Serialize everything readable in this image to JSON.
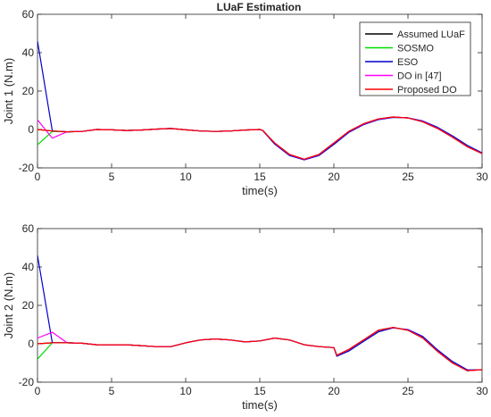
{
  "figure_title": "LUaF Estimation",
  "legend": [
    {
      "label": "Assumed LUaF",
      "color": "#000000"
    },
    {
      "label": "SOSMO",
      "color": "#00dd00"
    },
    {
      "label": "ESO",
      "color": "#0000cc"
    },
    {
      "label": "DO in [47]",
      "color": "#ff00ff"
    },
    {
      "label": "Proposed DO",
      "color": "#ff0000"
    }
  ],
  "chart_data": [
    {
      "type": "line",
      "title": "LUaF Estimation",
      "xlabel": "time(s)",
      "ylabel": "Joint 1 (N.m)",
      "xlim": [
        0,
        30
      ],
      "ylim": [
        -20,
        60
      ],
      "xticks": [
        0,
        5,
        10,
        15,
        20,
        25,
        30
      ],
      "yticks": [
        -20,
        0,
        20,
        40,
        60
      ],
      "grid": false,
      "legend_position": "top-right",
      "x": [
        0,
        1,
        2,
        3,
        4,
        5,
        6,
        7,
        8,
        9,
        10,
        11,
        12,
        13,
        14,
        15,
        15.2,
        16,
        17,
        18,
        19,
        20,
        21,
        22,
        23,
        24,
        25,
        26,
        27,
        28,
        29,
        30
      ],
      "series": [
        {
          "name": "Assumed LUaF",
          "color": "#000000",
          "values": [
            0,
            -0.8,
            -1.2,
            -1.0,
            0,
            -0.2,
            -0.5,
            -0.3,
            0.2,
            0.5,
            -0.2,
            -0.8,
            -1.0,
            -0.8,
            -0.3,
            0,
            -0.5,
            -7,
            -13,
            -15.5,
            -13,
            -7,
            -1,
            3,
            5.5,
            6.5,
            6,
            4,
            0.5,
            -4,
            -9,
            -12.5
          ]
        },
        {
          "name": "SOSMO",
          "color": "#00dd00",
          "values": [
            -8,
            -1,
            -1.2,
            -1.0,
            0,
            -0.2,
            -0.5,
            -0.3,
            0.2,
            0.5,
            -0.2,
            -0.8,
            -1.0,
            -0.8,
            -0.3,
            0,
            -0.5,
            -7.3,
            -13.3,
            -15.7,
            -13.3,
            -7.4,
            -1.3,
            2.8,
            5.3,
            6.4,
            6,
            4.2,
            0.8,
            -3.7,
            -8.7,
            -12.4
          ]
        },
        {
          "name": "ESO",
          "color": "#0000cc",
          "values": [
            46,
            -0.8,
            -1.2,
            -1.0,
            0,
            -0.2,
            -0.5,
            -0.3,
            0.2,
            0.5,
            -0.2,
            -0.8,
            -1.0,
            -0.8,
            -0.3,
            0,
            -0.6,
            -7.6,
            -13.6,
            -15.8,
            -13.6,
            -7.8,
            -1.6,
            2.5,
            5.1,
            6.3,
            6.1,
            4.4,
            1.1,
            -3.3,
            -8.3,
            -12.2
          ]
        },
        {
          "name": "DO in [47]",
          "color": "#ff00ff",
          "values": [
            5,
            -4.5,
            -1.2,
            -1.0,
            0,
            -0.2,
            -0.5,
            -0.3,
            0.2,
            0.5,
            -0.2,
            -0.8,
            -1.0,
            -0.8,
            -0.3,
            0,
            -0.5,
            -7.1,
            -13.1,
            -15.6,
            -13.1,
            -7.1,
            -1.1,
            2.9,
            5.4,
            6.5,
            6,
            4.1,
            0.6,
            -3.9,
            -8.9,
            -12.5
          ]
        },
        {
          "name": "Proposed DO",
          "color": "#ff0000",
          "values": [
            0,
            -0.8,
            -1.2,
            -1.0,
            0,
            -0.2,
            -0.5,
            -0.3,
            0.2,
            0.5,
            -0.2,
            -0.8,
            -1.0,
            -0.8,
            -0.3,
            0,
            -0.5,
            -7,
            -13,
            -15.5,
            -13,
            -7,
            -1,
            3,
            5.5,
            6.5,
            6,
            4,
            0.5,
            -4,
            -9,
            -12.5
          ]
        }
      ]
    },
    {
      "type": "line",
      "title": "",
      "xlabel": "time(s)",
      "ylabel": "Joint 2 (N.m)",
      "xlim": [
        0,
        30
      ],
      "ylim": [
        -20,
        60
      ],
      "xticks": [
        0,
        5,
        10,
        15,
        20,
        25,
        30
      ],
      "yticks": [
        -20,
        0,
        20,
        40,
        60
      ],
      "grid": false,
      "x": [
        0,
        1,
        2,
        3,
        4,
        5,
        6,
        7,
        8,
        9,
        10,
        11,
        12,
        13,
        14,
        15,
        16,
        17,
        18,
        19,
        20,
        20.2,
        21,
        22,
        23,
        24,
        25,
        26,
        27,
        28,
        29,
        30
      ],
      "series": [
        {
          "name": "Assumed LUaF",
          "color": "#000000",
          "values": [
            0,
            0.5,
            0.5,
            0.3,
            -0.5,
            -0.5,
            -0.5,
            -1.0,
            -1.5,
            -1.5,
            0.5,
            2,
            2.5,
            2,
            1,
            1.5,
            3,
            2,
            -0.5,
            -1.5,
            -2,
            -6,
            -3,
            2,
            7,
            8.5,
            7,
            3,
            -4,
            -10,
            -14,
            -13.5
          ]
        },
        {
          "name": "SOSMO",
          "color": "#00dd00",
          "values": [
            -8,
            0.5,
            0.5,
            0.3,
            -0.5,
            -0.5,
            -0.5,
            -1.0,
            -1.5,
            -1.5,
            0.5,
            2,
            2.5,
            2,
            1,
            1.5,
            3,
            2,
            -0.5,
            -1.5,
            -2,
            -6.2,
            -3.4,
            1.6,
            6.6,
            8.4,
            7.2,
            3.4,
            -3.6,
            -9.6,
            -13.8,
            -13.5
          ]
        },
        {
          "name": "ESO",
          "color": "#0000cc",
          "values": [
            46,
            0.5,
            0.5,
            0.3,
            -0.5,
            -0.5,
            -0.5,
            -1.0,
            -1.5,
            -1.5,
            0.5,
            2,
            2.5,
            2,
            1,
            1.5,
            3,
            2,
            -0.5,
            -1.5,
            -2,
            -6.5,
            -3.8,
            1.2,
            6.2,
            8.3,
            7.4,
            3.8,
            -3.2,
            -9.2,
            -13.6,
            -13.6
          ]
        },
        {
          "name": "DO in [47]",
          "color": "#ff00ff",
          "values": [
            3,
            6,
            0.5,
            0.3,
            -0.5,
            -0.5,
            -0.5,
            -1.0,
            -1.5,
            -1.5,
            0.5,
            2,
            2.5,
            2,
            1,
            1.5,
            3,
            2,
            -0.5,
            -1.5,
            -2,
            -6,
            -3.1,
            1.9,
            6.9,
            8.5,
            7.1,
            3.1,
            -3.9,
            -9.9,
            -14,
            -13.5
          ]
        },
        {
          "name": "Proposed DO",
          "color": "#ff0000",
          "values": [
            0,
            0.5,
            0.5,
            0.3,
            -0.5,
            -0.5,
            -0.5,
            -1.0,
            -1.5,
            -1.5,
            0.5,
            2,
            2.5,
            2,
            1,
            1.5,
            3,
            2,
            -0.5,
            -1.5,
            -2,
            -6,
            -3,
            2,
            7,
            8.5,
            7,
            3,
            -4,
            -10,
            -14,
            -13.5
          ]
        }
      ]
    }
  ]
}
